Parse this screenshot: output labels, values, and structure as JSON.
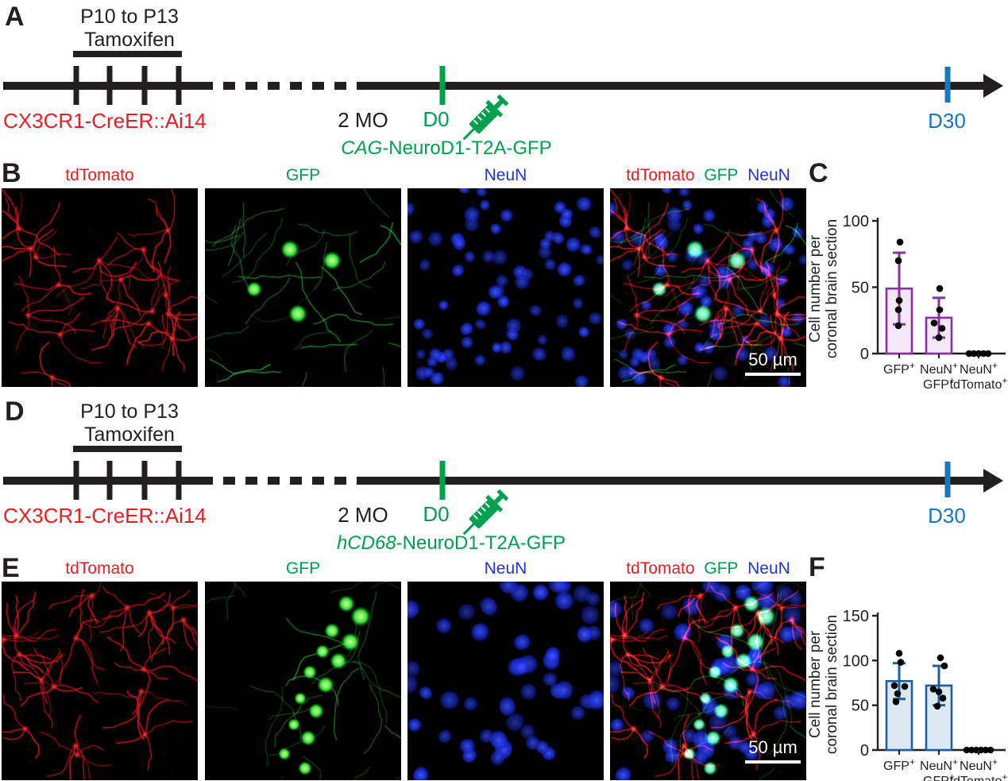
{
  "colors": {
    "red_label": "#ed1c24",
    "green_label": "#00A04E",
    "timeline_blue": "#1b75bc",
    "neun_blue": "#2433d0",
    "chartC_stroke": "#8b2fa5",
    "chartC_fill": "#f3e7f8",
    "chartF_stroke": "#1f5f9e",
    "chartF_fill": "#dce9f4"
  },
  "panels": {
    "A": {
      "letter": "A",
      "range_label": "P10 to P13",
      "drug_label": "Tamoxifen",
      "mouse_line": "CX3CR1-CreER::Ai14",
      "age_label": "2 MO",
      "d0_label": "D0",
      "construct_prefix": "CAG",
      "construct_suffix": "-NeuroD1-T2A-GFP",
      "end_label": "D30"
    },
    "D": {
      "letter": "D",
      "range_label": "P10 to P13",
      "drug_label": "Tamoxifen",
      "mouse_line": "CX3CR1-CreER::Ai14",
      "age_label": "2 MO",
      "d0_label": "D0",
      "construct_prefix": "hCD68",
      "construct_suffix": "-NeuroD1-T2A-GFP",
      "end_label": "D30"
    },
    "B": {
      "letter": "B",
      "channels": {
        "ch1": "tdTomato",
        "ch2": "GFP",
        "ch3": "NeuN"
      },
      "scale_bar": "50 µm"
    },
    "C": {
      "letter": "C"
    },
    "E": {
      "letter": "E",
      "channels": {
        "ch1": "tdTomato",
        "ch2": "GFP",
        "ch3": "NeuN"
      },
      "scale_bar": "50 µm"
    },
    "F": {
      "letter": "F"
    }
  },
  "chart_data": [
    {
      "id": "C",
      "type": "bar",
      "categories": [
        "GFP+",
        "NeuN+ GFP+",
        "NeuN+ tdTomato+"
      ],
      "cat_lines": [
        [
          "GFP+"
        ],
        [
          "NeuN+",
          "GFP+"
        ],
        [
          "NeuN+",
          "tdTomato+"
        ]
      ],
      "values": [
        49,
        27,
        0
      ],
      "sd": [
        27,
        15,
        0
      ],
      "points": [
        [
          84,
          70,
          40,
          33,
          21
        ],
        [
          49,
          33,
          23,
          19,
          12
        ],
        [
          0,
          0,
          0,
          0,
          0
        ]
      ],
      "point_x_offsets": [
        [
          1,
          -1,
          0,
          -1,
          -1
        ],
        [
          1,
          1,
          -6,
          4,
          0
        ],
        [
          -12,
          -6,
          0,
          6,
          12
        ]
      ],
      "title": "",
      "xlabel": "",
      "ylabel": [
        "Cell number per",
        "coronal brain section"
      ],
      "yticks": [
        0,
        50,
        100
      ],
      "ylim": [
        0,
        100
      ],
      "grid": false,
      "legend": "none",
      "bar_fill": "#f3e7f8",
      "bar_stroke": "#8b2fa5"
    },
    {
      "id": "F",
      "type": "bar",
      "categories": [
        "GFP+",
        "NeuN+ GFP+",
        "NeuN+ tdTomato+"
      ],
      "cat_lines": [
        [
          "GFP+"
        ],
        [
          "NeuN+",
          "GFP+"
        ],
        [
          "NeuN+",
          "tdTomato+"
        ]
      ],
      "values": [
        77,
        72,
        0
      ],
      "sd": [
        20,
        22,
        0
      ],
      "points": [
        [
          108,
          98,
          72,
          71,
          63,
          54
        ],
        [
          103,
          94,
          68,
          65,
          58,
          49
        ],
        [
          0,
          0,
          0,
          0,
          0,
          0
        ]
      ],
      "point_x_offsets": [
        [
          0,
          2,
          -6,
          7,
          -2,
          -4
        ],
        [
          2,
          7,
          -7,
          0,
          5,
          -2
        ],
        [
          -15,
          -9,
          -3,
          3,
          9,
          15
        ]
      ],
      "title": "",
      "xlabel": "",
      "ylabel": [
        "Cell number per",
        "coronal brain section"
      ],
      "yticks": [
        0,
        50,
        100,
        150
      ],
      "ylim": [
        0,
        150
      ],
      "grid": false,
      "legend": "none",
      "bar_fill": "#dce9f4",
      "bar_stroke": "#1f5f9e"
    }
  ]
}
